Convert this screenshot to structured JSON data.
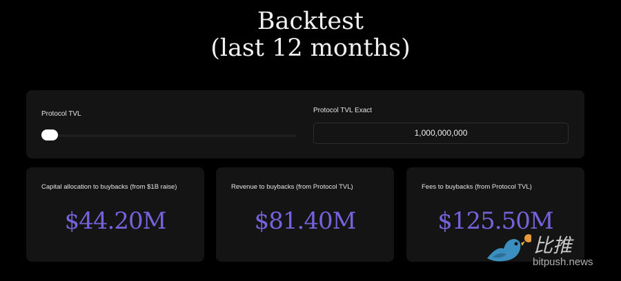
{
  "header": {
    "title_line1": "Backtest",
    "title_line2": "(last 12 months)"
  },
  "controls": {
    "slider_label": "Protocol TVL",
    "slider_value_fraction": 0.0,
    "exact_label": "Protocol TVL Exact",
    "exact_value": "1,000,000,000"
  },
  "cards": [
    {
      "label": "Capital allocation to buybacks (from $1B raise)",
      "value": "$44.20M"
    },
    {
      "label": "Revenue to buybacks (from Protocol TVL)",
      "value": "$81.40M"
    },
    {
      "label": "Fees to buybacks (from Protocol TVL)",
      "value": "$125.50M"
    }
  ],
  "watermark": {
    "cn": "比推",
    "en": "bitpush.news"
  },
  "colors": {
    "accent": "#7563dd",
    "panel": "#141414",
    "background": "#000000"
  }
}
